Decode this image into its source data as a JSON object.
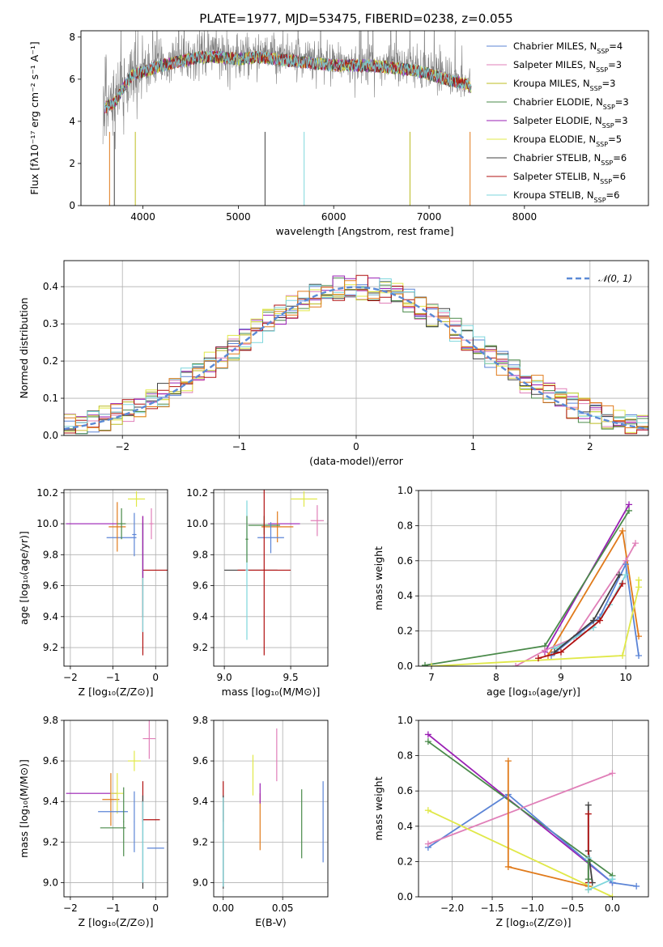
{
  "title": "PLATE=1977, MJD=53475, FIBERID=0238, z=0.055",
  "colors": {
    "cM": "#5b84d6",
    "sM": "#e07fb8",
    "kM": "#bcbc22",
    "cE": "#4a8a4a",
    "sE": "#9a1fb4",
    "kE": "#e0e848",
    "cS": "#404040",
    "sS": "#b01010",
    "kS": "#7dd6dc",
    "orange": "#e07a1a",
    "spec": "#7f7f7f"
  },
  "chart_data": [
    {
      "id": "spectrum",
      "type": "line",
      "xlabel": "wavelength [Angstrom, rest frame]",
      "ylabel": "Flux [fλ10⁻¹⁷ erg cm⁻² s⁻¹ A⁻¹]",
      "xlim": [
        3350,
        9300
      ],
      "ylim": [
        0,
        8.3
      ],
      "xticks": [
        4000,
        5000,
        6000,
        7000,
        8000
      ],
      "yticks": [
        0,
        2,
        4,
        6,
        8
      ],
      "xticklabels": [
        "4000",
        "5000",
        "6000",
        "7000",
        "8000"
      ],
      "yticklabels": [
        "0",
        "2",
        "4",
        "6",
        "8"
      ],
      "continuum_x": [
        3600,
        3700,
        3800,
        3900,
        4000,
        4200,
        4400,
        4600,
        4800,
        5000,
        5200,
        5400,
        5600,
        5800,
        6000,
        6200,
        6400,
        6600,
        6800,
        7000,
        7200,
        7400,
        7500
      ],
      "continuum_y": [
        4.8,
        5.0,
        5.8,
        6.4,
        6.5,
        6.8,
        7.0,
        7.2,
        7.2,
        7.1,
        7.2,
        7.1,
        7.0,
        6.9,
        6.8,
        6.8,
        6.8,
        6.7,
        6.6,
        6.4,
        6.1,
        5.9,
        5.5
      ],
      "legend_position": "top-right",
      "legend": [
        {
          "label": "Chabrier MILES, N",
          "sub": "SSP",
          "tail": "=4",
          "color": "cM"
        },
        {
          "label": "Salpeter MILES, N",
          "sub": "SSP",
          "tail": "=3",
          "color": "sM"
        },
        {
          "label": "Kroupa MILES, N",
          "sub": "SSP",
          "tail": "=3",
          "color": "kM"
        },
        {
          "label": "Chabrier ELODIE, N",
          "sub": "SSP",
          "tail": "=3",
          "color": "cE"
        },
        {
          "label": "Salpeter ELODIE, N",
          "sub": "SSP",
          "tail": "=3",
          "color": "sE"
        },
        {
          "label": "Kroupa ELODIE, N",
          "sub": "SSP",
          "tail": "=5",
          "color": "kE"
        },
        {
          "label": "Chabrier STELIB, N",
          "sub": "SSP",
          "tail": "=6",
          "color": "cS"
        },
        {
          "label": "Salpeter STELIB, N",
          "sub": "SSP",
          "tail": "=6",
          "color": "sS"
        },
        {
          "label": "Kroupa STELIB, N",
          "sub": "SSP",
          "tail": "=6",
          "color": "kS"
        }
      ]
    },
    {
      "id": "residuals",
      "type": "histogram",
      "xlabel": "(data-model)/error",
      "ylabel": "Normed distribution",
      "xlim": [
        -2.5,
        2.5
      ],
      "ylim": [
        0,
        0.47
      ],
      "xticks": [
        -2,
        -1,
        0,
        1,
        2
      ],
      "yticks": [
        0,
        0.1,
        0.2,
        0.3,
        0.4
      ],
      "xticklabels": [
        "−2",
        "−1",
        "0",
        "1",
        "2"
      ],
      "yticklabels": [
        "0.0",
        "0.1",
        "0.2",
        "0.3",
        "0.4"
      ],
      "bin_width": 0.1,
      "grid": true,
      "legend": {
        "label": "𝒩(0, 1)",
        "position": "top-right"
      }
    },
    {
      "id": "age_vs_Z",
      "type": "errorbar",
      "xlabel": "Z [log₁₀(Z/Z⊙)]",
      "ylabel": "age  [log₁₀(age/yr)]",
      "xlim": [
        -2.15,
        0.28
      ],
      "ylim": [
        9.08,
        10.22
      ],
      "xticks": [
        -2,
        -1,
        0
      ],
      "yticks": [
        9.2,
        9.4,
        9.6,
        9.8,
        10.0,
        10.2
      ],
      "xticklabels": [
        "−2",
        "−1",
        "0"
      ],
      "yticklabels": [
        "9.2",
        "9.4",
        "9.6",
        "9.8",
        "10.0",
        "10.2"
      ],
      "points": [
        {
          "c": "sE",
          "x": -1.5,
          "xe": 0.6,
          "y": 10.0,
          "ye": 0.0
        },
        {
          "c": "cM",
          "x": -0.8,
          "xe": 0.35,
          "y": 9.91,
          "ye": 0.0
        },
        {
          "c": "orange",
          "x": -0.9,
          "xe": 0.2,
          "y": 9.98,
          "ye": 0.16
        },
        {
          "c": "cE",
          "x": -0.8,
          "xe": 0.1,
          "y": 10.0,
          "ye": 0.1
        },
        {
          "c": "kE",
          "x": -0.45,
          "xe": 0.2,
          "y": 10.16,
          "ye": 0.05
        },
        {
          "c": "cM",
          "x": -0.5,
          "xe": 0.05,
          "y": 9.93,
          "ye": 0.14
        },
        {
          "c": "sM",
          "x": -0.1,
          "xe": 0.05,
          "y": 10.0,
          "ye": 0.1
        },
        {
          "c": "sS",
          "x": 0.0,
          "xe": 0.3,
          "y": 9.7,
          "ye": 0.0
        },
        {
          "c": "cS",
          "x": -0.3,
          "xe": 0.01,
          "y": 9.7,
          "ye": 0.3
        },
        {
          "c": "sS",
          "x": -0.3,
          "xe": 0.01,
          "y": 9.6,
          "ye": 0.45
        },
        {
          "c": "kS",
          "x": -0.3,
          "xe": 0.01,
          "y": 9.65,
          "ye": 0.35
        },
        {
          "c": "sE",
          "x": -0.3,
          "xe": 0.01,
          "y": 9.85,
          "ye": 0.2
        }
      ]
    },
    {
      "id": "age_vs_mass",
      "type": "errorbar",
      "xlabel": "mass [log₁₀(M/M⊙)]",
      "ylabel": "",
      "xlim": [
        8.92,
        9.78
      ],
      "ylim": [
        9.08,
        10.22
      ],
      "xticks": [
        9.0,
        9.5
      ],
      "yticks": [
        9.2,
        9.4,
        9.6,
        9.8,
        10.0,
        10.2
      ],
      "xticklabels": [
        "9.0",
        "9.5"
      ],
      "yticklabels": [
        "9.2",
        "9.4",
        "9.6",
        "9.8",
        "10.0",
        "10.2"
      ],
      "points": [
        {
          "c": "kE",
          "x": 9.6,
          "xe": 0.1,
          "y": 10.16,
          "ye": 0.05
        },
        {
          "c": "sM",
          "x": 9.7,
          "xe": 0.05,
          "y": 10.02,
          "ye": 0.1
        },
        {
          "c": "sE",
          "x": 9.45,
          "xe": 0.12,
          "y": 10.0,
          "ye": 0.0
        },
        {
          "c": "orange",
          "x": 9.4,
          "xe": 0.12,
          "y": 9.98,
          "ye": 0.1
        },
        {
          "c": "cE",
          "x": 9.3,
          "xe": 0.12,
          "y": 9.99,
          "ye": 0.06
        },
        {
          "c": "cM",
          "x": 9.35,
          "xe": 0.1,
          "y": 9.91,
          "ye": 0.1
        },
        {
          "c": "cS",
          "x": 9.2,
          "xe": 0.2,
          "y": 9.7,
          "ye": 0.0
        },
        {
          "c": "sS",
          "x": 9.3,
          "xe": 0.2,
          "y": 9.7,
          "ye": 0.55
        },
        {
          "c": "kS",
          "x": 9.17,
          "xe": 0.01,
          "y": 9.7,
          "ye": 0.45
        },
        {
          "c": "cE",
          "x": 9.17,
          "xe": 0.01,
          "y": 9.9,
          "ye": 0.15
        }
      ]
    },
    {
      "id": "weight_vs_age",
      "type": "line",
      "xlabel": "age  [log₁₀(age/yr)]",
      "ylabel": "mass weight",
      "xlim": [
        6.8,
        10.35
      ],
      "ylim": [
        0,
        1
      ],
      "xticks": [
        7,
        8,
        9,
        10
      ],
      "yticks": [
        0,
        0.2,
        0.4,
        0.6,
        0.8,
        1.0
      ],
      "xticklabels": [
        "7",
        "8",
        "9",
        "10"
      ],
      "yticklabels": [
        "0.0",
        "0.2",
        "0.4",
        "0.6",
        "0.8",
        "1.0"
      ],
      "series": [
        {
          "c": "sE",
          "x": [
            8.75,
            10.05
          ],
          "y": [
            0.08,
            0.92
          ]
        },
        {
          "c": "cE",
          "x": [
            6.9,
            8.75,
            10.05
          ],
          "y": [
            0.005,
            0.115,
            0.885
          ]
        },
        {
          "c": "orange",
          "x": [
            8.8,
            9.95,
            10.2
          ],
          "y": [
            0.06,
            0.77,
            0.17
          ]
        },
        {
          "c": "sM",
          "x": [
            8.3,
            8.75,
            9.2,
            10.0,
            10.15
          ],
          "y": [
            0.0,
            0.09,
            0.16,
            0.6,
            0.7
          ]
        },
        {
          "c": "cM",
          "x": [
            8.85,
            9.6,
            10.0,
            10.2
          ],
          "y": [
            0.06,
            0.28,
            0.58,
            0.06
          ]
        },
        {
          "c": "kE",
          "x": [
            7.0,
            9.95,
            10.2,
            10.2
          ],
          "y": [
            0.0,
            0.06,
            0.45,
            0.49
          ]
        },
        {
          "c": "kS",
          "x": [
            8.9,
            9.5,
            9.75,
            10.0
          ],
          "y": [
            0.1,
            0.22,
            0.35,
            0.52
          ]
        },
        {
          "c": "cS",
          "x": [
            8.9,
            9.5,
            9.9
          ],
          "y": [
            0.08,
            0.26,
            0.52
          ]
        },
        {
          "c": "sS",
          "x": [
            8.65,
            9.0,
            9.6,
            9.95
          ],
          "y": [
            0.045,
            0.08,
            0.26,
            0.47
          ]
        }
      ]
    },
    {
      "id": "mass_vs_Z",
      "type": "errorbar",
      "xlabel": "Z [log₁₀(Z/Z⊙)]",
      "ylabel": "mass [log₁₀(M/M⊙)]",
      "xlim": [
        -2.15,
        0.28
      ],
      "ylim": [
        8.93,
        9.8
      ],
      "xticks": [
        -2,
        -1,
        0
      ],
      "yticks": [
        9.0,
        9.2,
        9.4,
        9.6,
        9.8
      ],
      "xticklabels": [
        "−2",
        "−1",
        "0"
      ],
      "yticklabels": [
        "9.0",
        "9.2",
        "9.4",
        "9.6",
        "9.8"
      ],
      "points": [
        {
          "c": "sM",
          "x": -0.15,
          "xe": 0.15,
          "y": 9.71,
          "ye": 0.1
        },
        {
          "c": "kE",
          "x": -0.5,
          "xe": 0.15,
          "y": 9.6,
          "ye": 0.05
        },
        {
          "c": "sE",
          "x": -1.5,
          "xe": 0.6,
          "y": 9.44,
          "ye": 0.0
        },
        {
          "c": "orange",
          "x": -1.05,
          "xe": 0.2,
          "y": 9.41,
          "ye": 0.13
        },
        {
          "c": "kE",
          "x": -0.9,
          "xe": 0.15,
          "y": 9.44,
          "ye": 0.1
        },
        {
          "c": "cM",
          "x": -1.0,
          "xe": 0.35,
          "y": 9.35,
          "ye": 0.0
        },
        {
          "c": "cE",
          "x": -1.0,
          "xe": 0.3,
          "y": 9.27,
          "ye": 0.0
        },
        {
          "c": "cE",
          "x": -0.75,
          "xe": 0.01,
          "y": 9.3,
          "ye": 0.17
        },
        {
          "c": "cM",
          "x": -0.5,
          "xe": 0.01,
          "y": 9.3,
          "ye": 0.15
        },
        {
          "c": "sS",
          "x": -0.1,
          "xe": 0.2,
          "y": 9.31,
          "ye": 0.0
        },
        {
          "c": "cM",
          "x": 0.0,
          "xe": 0.2,
          "y": 9.17,
          "ye": 0.0
        },
        {
          "c": "sS",
          "x": -0.3,
          "xe": 0.01,
          "y": 9.4,
          "ye": 0.1
        },
        {
          "c": "cS",
          "x": -0.3,
          "xe": 0.01,
          "y": 9.2,
          "ye": 0.23
        },
        {
          "c": "kS",
          "x": -0.3,
          "xe": 0.01,
          "y": 9.2,
          "ye": 0.2
        }
      ]
    },
    {
      "id": "mass_vs_ebv",
      "type": "errorbar",
      "xlabel": "E(B-V)",
      "ylabel": "",
      "xlim": [
        -0.008,
        0.088
      ],
      "ylim": [
        8.93,
        9.8
      ],
      "xticks": [
        0.0,
        0.05
      ],
      "yticks": [
        9.0,
        9.2,
        9.4,
        9.6,
        9.8
      ],
      "xticklabels": [
        "0.00",
        "0.05"
      ],
      "yticklabels": [
        "9.0",
        "9.2",
        "9.4",
        "9.6",
        "9.8"
      ],
      "points": [
        {
          "c": "sM",
          "x": 0.045,
          "xe": 0.0,
          "y": 9.63,
          "ye": 0.13
        },
        {
          "c": "kE",
          "x": 0.025,
          "xe": 0.0,
          "y": 9.53,
          "ye": 0.1
        },
        {
          "c": "orange",
          "x": 0.031,
          "xe": 0.0,
          "y": 9.3,
          "ye": 0.14
        },
        {
          "c": "sE",
          "x": 0.031,
          "xe": 0.0,
          "y": 9.44,
          "ye": 0.05
        },
        {
          "c": "cE",
          "x": 0.066,
          "xe": 0.0,
          "y": 9.29,
          "ye": 0.17
        },
        {
          "c": "cM",
          "x": 0.084,
          "xe": 0.0,
          "y": 9.3,
          "ye": 0.2
        },
        {
          "c": "sS",
          "x": 0.0,
          "xe": 0.0,
          "y": 9.4,
          "ye": 0.1
        },
        {
          "c": "cS",
          "x": 0.0,
          "xe": 0.0,
          "y": 9.2,
          "ye": 0.23
        },
        {
          "c": "kS",
          "x": 0.0,
          "xe": 0.0,
          "y": 9.2,
          "ye": 0.22
        }
      ]
    },
    {
      "id": "weight_vs_Z",
      "type": "line",
      "xlabel": "Z [log₁₀(Z/Z⊙)]",
      "ylabel": "mass weight",
      "xlim": [
        -2.42,
        0.45
      ],
      "ylim": [
        0,
        1
      ],
      "xticks": [
        -2.0,
        -1.5,
        -1.0,
        -0.5,
        0.0
      ],
      "yticks": [
        0,
        0.2,
        0.4,
        0.6,
        0.8,
        1.0
      ],
      "xticklabels": [
        "−2.0",
        "−1.5",
        "−1.0",
        "−0.5",
        "0.0"
      ],
      "yticklabels": [
        "0.0",
        "0.2",
        "0.4",
        "0.6",
        "0.8",
        "1.0"
      ],
      "series": [
        {
          "c": "sE",
          "x": [
            -2.3,
            0.0
          ],
          "y": [
            0.92,
            0.08
          ]
        },
        {
          "c": "cE",
          "x": [
            -2.3,
            0.0
          ],
          "y": [
            0.88,
            0.12
          ]
        },
        {
          "c": "cM",
          "x": [
            -2.3,
            -1.3,
            0.0,
            0.3
          ],
          "y": [
            0.28,
            0.58,
            0.08,
            0.06
          ]
        },
        {
          "c": "sM",
          "x": [
            -2.3,
            0.0
          ],
          "y": [
            0.3,
            0.7
          ]
        },
        {
          "c": "kE",
          "x": [
            -2.3,
            0.0
          ],
          "y": [
            0.49,
            0.0
          ]
        },
        {
          "c": "orange",
          "x": [
            -1.3,
            -1.3,
            -0.3,
            -0.3
          ],
          "y": [
            0.77,
            0.17,
            0.06,
            0.04
          ]
        },
        {
          "c": "cS",
          "x": [
            -0.3,
            -0.3,
            -0.25
          ],
          "y": [
            0.52,
            0.26,
            0.08
          ]
        },
        {
          "c": "sS",
          "x": [
            -0.3,
            -0.3
          ],
          "y": [
            0.47,
            0.08
          ]
        },
        {
          "c": "kS",
          "x": [
            -0.3,
            -0.3,
            0.0
          ],
          "y": [
            0.22,
            0.04,
            0.1
          ]
        },
        {
          "c": "cE",
          "x": [
            -0.3,
            -0.3
          ],
          "y": [
            0.2,
            0.1
          ]
        }
      ]
    }
  ]
}
